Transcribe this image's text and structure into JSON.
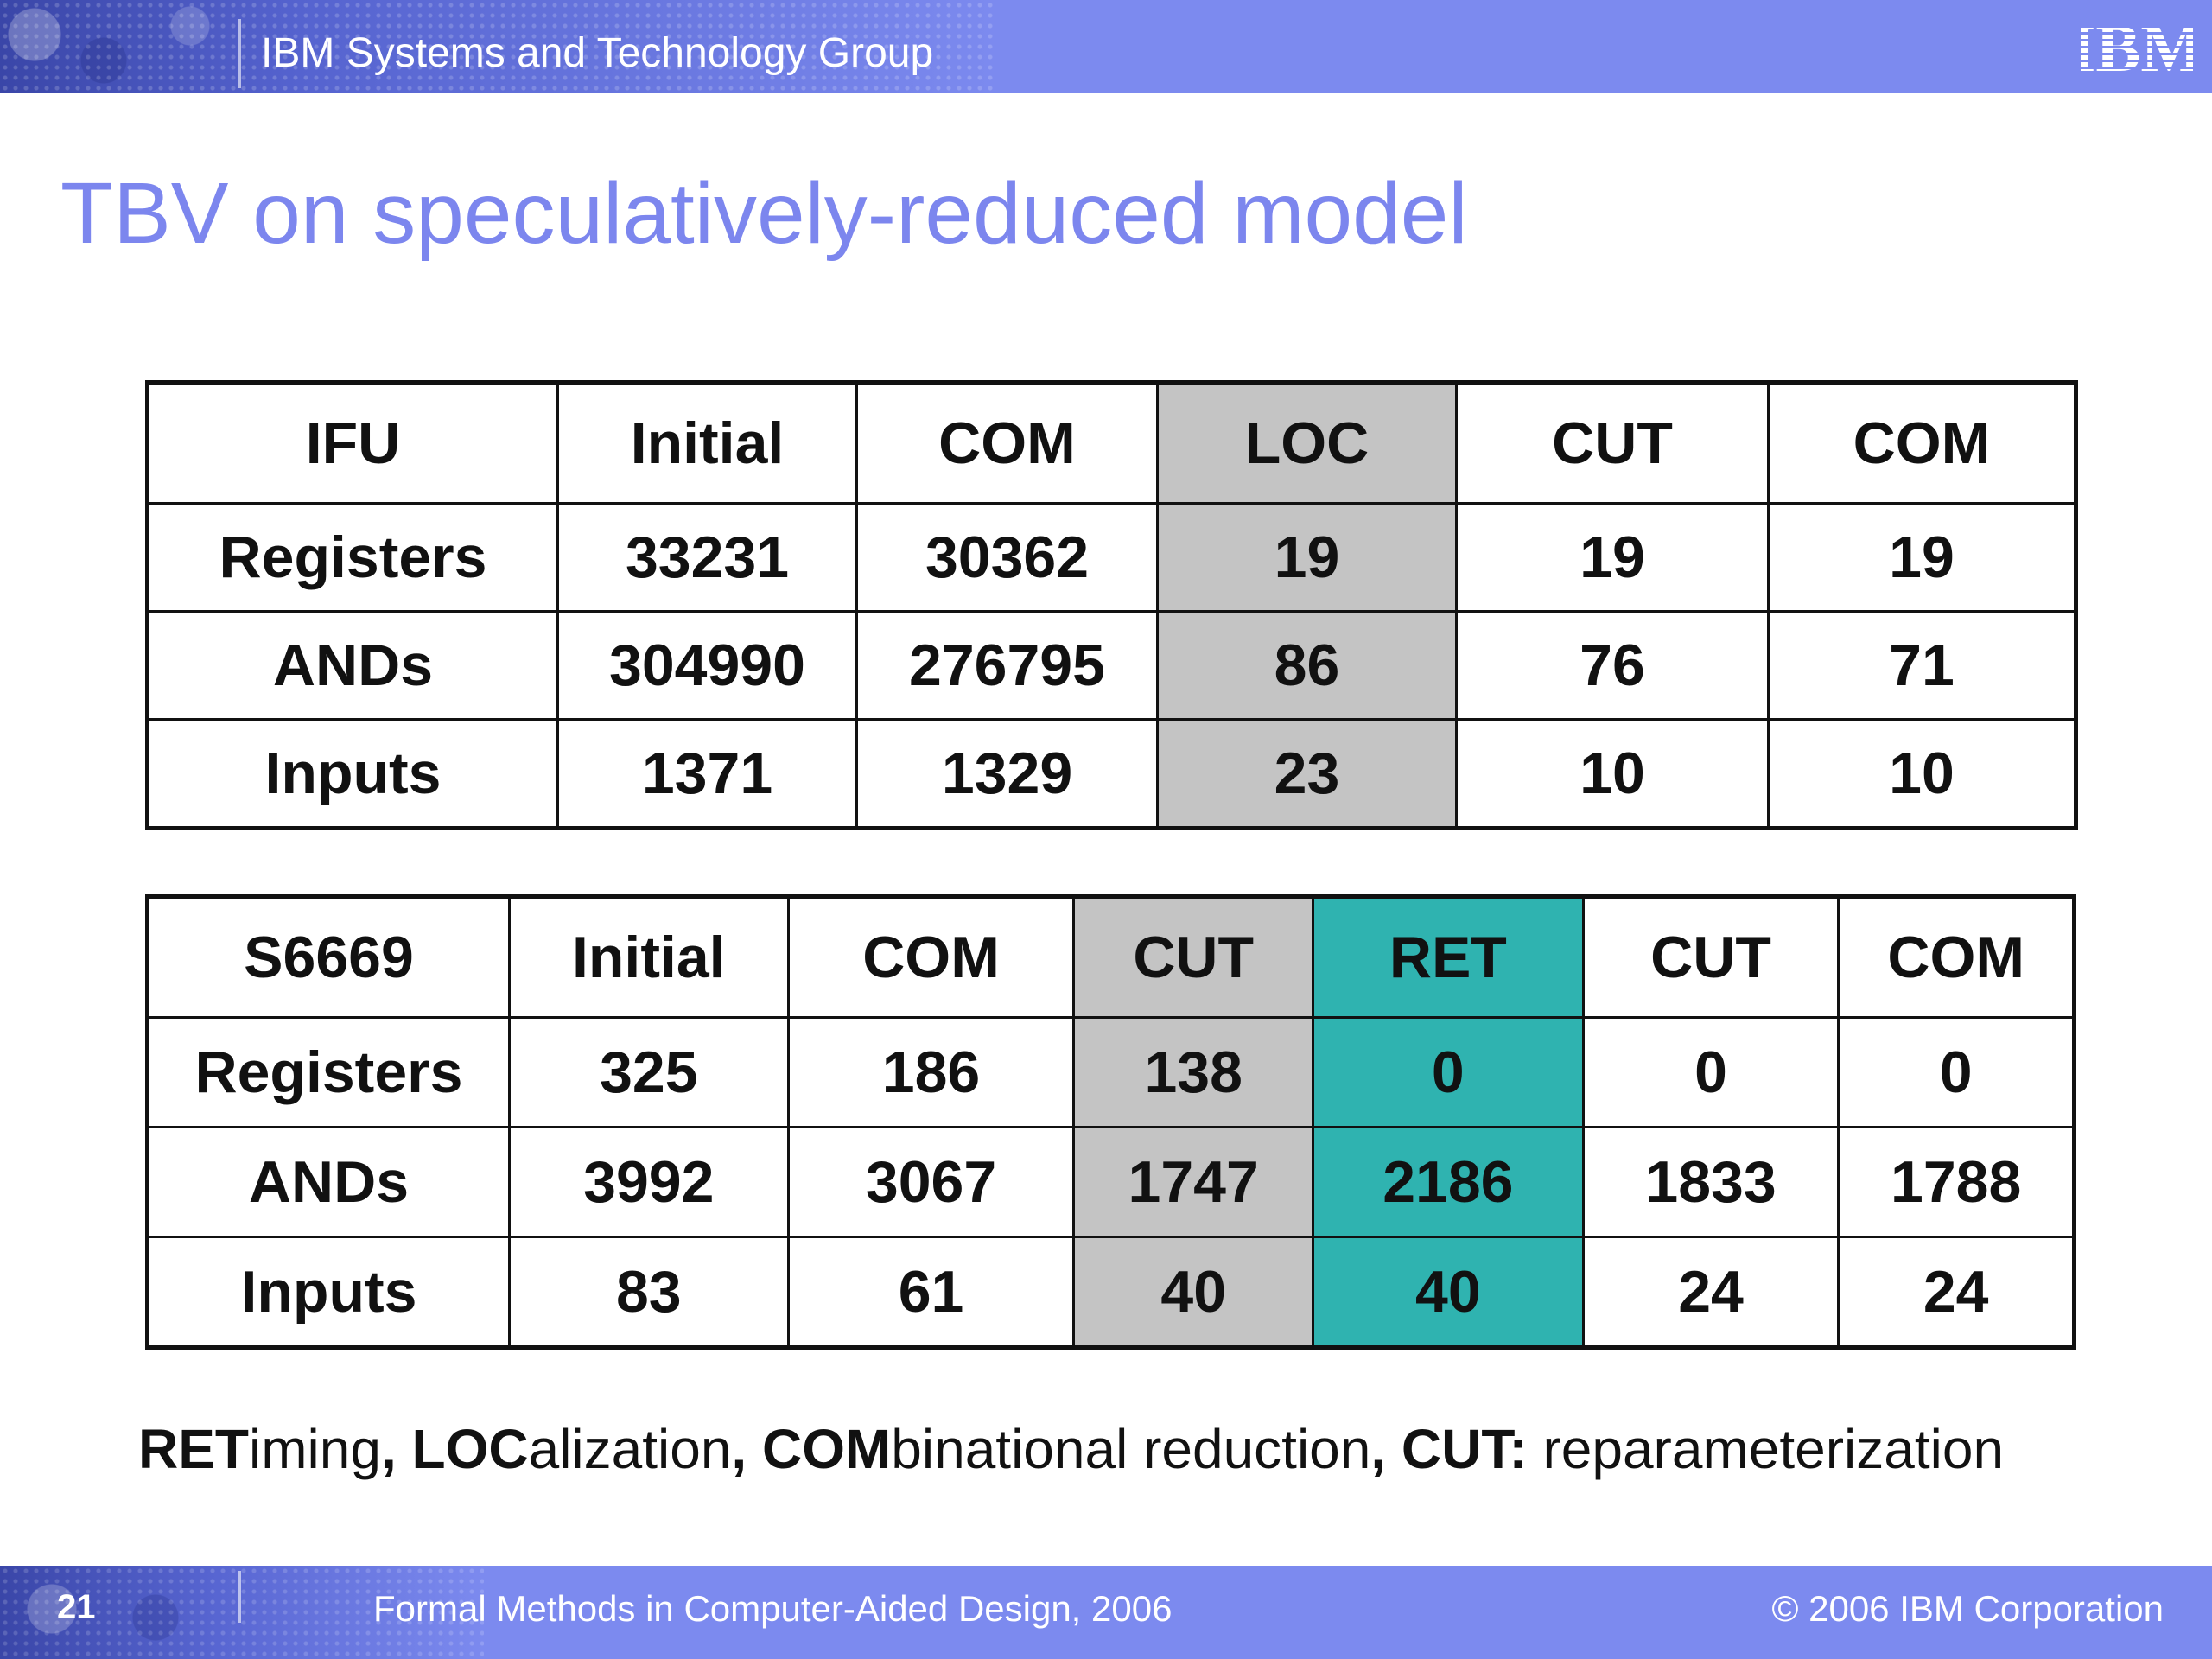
{
  "header": {
    "group_title": "IBM Systems and Technology Group",
    "logo_text": "IBM"
  },
  "title": "TBV on speculatively-reduced model",
  "table1": {
    "headers": [
      "IFU",
      "Initial",
      "COM",
      "LOC",
      "CUT",
      "COM"
    ],
    "rows": [
      [
        "Registers",
        "33231",
        "30362",
        "19",
        "19",
        "19"
      ],
      [
        "ANDs",
        "304990",
        "276795",
        "86",
        "76",
        "71"
      ],
      [
        "Inputs",
        "1371",
        "1329",
        "23",
        "10",
        "10"
      ]
    ],
    "highlight": {
      "column": 3,
      "color": "#c4c4c4"
    }
  },
  "table2": {
    "headers": [
      "S6669",
      "Initial",
      "COM",
      "CUT",
      "RET",
      "CUT",
      "COM"
    ],
    "rows": [
      [
        "Registers",
        "325",
        "186",
        "138",
        "0",
        "0",
        "0"
      ],
      [
        "ANDs",
        "3992",
        "3067",
        "1747",
        "2186",
        "1833",
        "1788"
      ],
      [
        "Inputs",
        "83",
        "61",
        "40",
        "40",
        "24",
        "24"
      ]
    ],
    "highlight": [
      {
        "column": 3,
        "color": "#c4c4c4"
      },
      {
        "column": 4,
        "color": "#2fb3b0"
      }
    ]
  },
  "legend": {
    "ret_abbr": "RET",
    "ret_rest": "iming",
    "sep1": ", ",
    "loc_abbr": "LOC",
    "loc_rest": "alization",
    "sep2": ", ",
    "com_abbr": "COM",
    "com_rest": "binational reduction",
    "sep3": ", ",
    "cut_abbr": "CUT:",
    "cut_rest": " reparameterization"
  },
  "footer": {
    "page_number": "21",
    "conference": "Formal Methods in Computer-Aided Design, 2006",
    "copyright": "© 2006 IBM Corporation"
  },
  "colors": {
    "bar": "#7c8aef",
    "title": "#7c86ee",
    "gray": "#c4c4c4",
    "teal": "#2fb3b0"
  }
}
